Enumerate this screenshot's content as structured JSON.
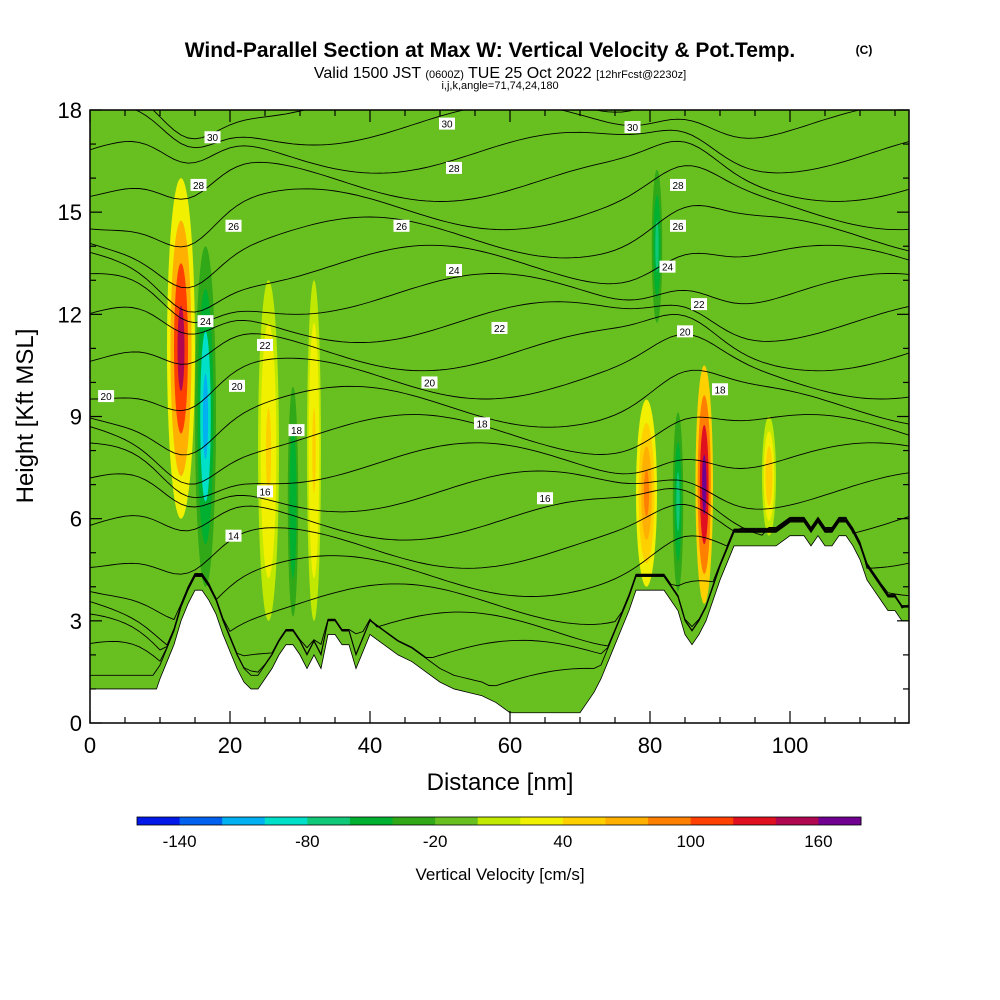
{
  "chart_data": {
    "type": "heatmap",
    "title": "Wind-Parallel Section at Max W: Vertical Velocity & Pot.Temp.",
    "title_mark": "(C)",
    "subtitle_parts": [
      "Valid 1500 JST ",
      "(0600Z)",
      " TUE 25 Oct 2022 ",
      "[12hrFcst@2230z]"
    ],
    "subtitle2": "i,j,k,angle=71,74,24,180",
    "xlabel": "Distance [nm]",
    "ylabel": "Height [Kft MSL]",
    "xlim": [
      0,
      117
    ],
    "ylim": [
      0,
      18
    ],
    "x_ticks": [
      0,
      20,
      40,
      60,
      80,
      100
    ],
    "y_ticks": [
      0,
      3,
      6,
      9,
      12,
      15,
      18
    ],
    "x_tick_labels": [
      "0",
      "20",
      "40",
      "60",
      "80",
      "100"
    ],
    "y_tick_labels": [
      "0",
      "3",
      "6",
      "9",
      "12",
      "15",
      "18"
    ],
    "colorbar": {
      "title": "Vertical Velocity [cm/s]",
      "levels": [
        -160,
        -140,
        -120,
        -100,
        -80,
        -60,
        -40,
        -20,
        0,
        20,
        40,
        60,
        80,
        100,
        120,
        140,
        160,
        180
      ],
      "colors": [
        "#0018e8",
        "#0060f0",
        "#00b0f0",
        "#00e0c8",
        "#10c878",
        "#00b030",
        "#30a818",
        "#68c020",
        "#c0e800",
        "#f0f000",
        "#ffd000",
        "#ffb000",
        "#ff8000",
        "#ff4000",
        "#e01020",
        "#b00850",
        "#700090"
      ],
      "tick_values": [
        -140,
        -80,
        -20,
        40,
        100,
        160
      ],
      "tick_labels": [
        "-140",
        "-80",
        "-20",
        "40",
        "100",
        "160"
      ]
    },
    "vertical_velocity_cells": [
      {
        "x": [
          11,
          15
        ],
        "y": [
          6,
          16
        ],
        "w": 140
      },
      {
        "x": [
          15,
          18
        ],
        "y": [
          4,
          14
        ],
        "w": -120
      },
      {
        "x": [
          24,
          27
        ],
        "y": [
          3,
          13
        ],
        "w": 50
      },
      {
        "x": [
          28,
          30
        ],
        "y": [
          2,
          11
        ],
        "w": -60
      },
      {
        "x": [
          31,
          33
        ],
        "y": [
          3,
          13
        ],
        "w": 45
      },
      {
        "x": [
          78,
          81
        ],
        "y": [
          4,
          9.5
        ],
        "w": 80
      },
      {
        "x": [
          83,
          85
        ],
        "y": [
          3,
          10
        ],
        "w": -80
      },
      {
        "x": [
          86.5,
          89
        ],
        "y": [
          3.5,
          10.5
        ],
        "w": 170
      },
      {
        "x": [
          80,
          82
        ],
        "y": [
          11,
          17
        ],
        "w": -70
      },
      {
        "x": [
          96,
          98
        ],
        "y": [
          5.5,
          9
        ],
        "w": 55
      }
    ],
    "terrain_height_profile": {
      "x": [
        0,
        9.5,
        10,
        11,
        12,
        13,
        14,
        15,
        16,
        17,
        18,
        19,
        20,
        21,
        22,
        23,
        24,
        25,
        26,
        27,
        28,
        29,
        30,
        31,
        32,
        33,
        34,
        35,
        36,
        37,
        38,
        40,
        42,
        44,
        46,
        48,
        50,
        52,
        54,
        56,
        58,
        60,
        62,
        64,
        66,
        68,
        70,
        71,
        72,
        73,
        74,
        75,
        76,
        77,
        78,
        80,
        82,
        83,
        84,
        85,
        86,
        87,
        88,
        89,
        90,
        92,
        94,
        96,
        98,
        100,
        102,
        103,
        104,
        105,
        106,
        107,
        108,
        109,
        110,
        111,
        112,
        113,
        114,
        115,
        116,
        117
      ],
      "y": [
        1,
        1,
        1.3,
        1.8,
        2.3,
        3,
        3.5,
        3.9,
        3.9,
        3.6,
        3.2,
        2.6,
        2.1,
        1.6,
        1.2,
        1,
        1,
        1.3,
        1.6,
        2,
        2.3,
        2.3,
        2,
        1.6,
        2,
        1.6,
        2.6,
        2.6,
        2.3,
        2.3,
        1.6,
        2.6,
        2.3,
        2,
        1.8,
        1.5,
        1.2,
        1,
        0.9,
        0.8,
        0.6,
        0.3,
        0.3,
        0.3,
        0.3,
        0.3,
        0.3,
        0.6,
        0.9,
        1.3,
        1.8,
        2.3,
        2.8,
        3.3,
        3.9,
        3.9,
        3.9,
        3.6,
        3.3,
        2.6,
        2.3,
        2.6,
        3,
        3.6,
        4.2,
        5.2,
        5.2,
        5.2,
        5.2,
        5.5,
        5.5,
        5.2,
        5.5,
        5.2,
        5.2,
        5.5,
        5.5,
        5.2,
        4.8,
        4.2,
        3.9,
        3.6,
        3.3,
        3.3,
        3,
        3
      ]
    },
    "theta_contour_levels": [
      10,
      11,
      12,
      13,
      14,
      15,
      16,
      17,
      18,
      19,
      20,
      21,
      22,
      23,
      24,
      25,
      26,
      27,
      28,
      29,
      30,
      31
    ],
    "theta_contour_labels": [
      {
        "text": "30",
        "x": 17.5,
        "y": 17.2
      },
      {
        "text": "28",
        "x": 15.5,
        "y": 15.8
      },
      {
        "text": "26",
        "x": 20.5,
        "y": 14.6
      },
      {
        "text": "24",
        "x": 16.5,
        "y": 11.8
      },
      {
        "text": "22",
        "x": 25,
        "y": 11.1
      },
      {
        "text": "20",
        "x": 21,
        "y": 9.9
      },
      {
        "text": "20",
        "x": 2.3,
        "y": 9.6
      },
      {
        "text": "18",
        "x": 29.5,
        "y": 8.6
      },
      {
        "text": "16",
        "x": 25,
        "y": 6.8
      },
      {
        "text": "14",
        "x": 20.5,
        "y": 5.5
      },
      {
        "text": "30",
        "x": 51,
        "y": 17.6
      },
      {
        "text": "28",
        "x": 52,
        "y": 16.3
      },
      {
        "text": "26",
        "x": 44.5,
        "y": 14.6
      },
      {
        "text": "24",
        "x": 52,
        "y": 13.3
      },
      {
        "text": "22",
        "x": 58.5,
        "y": 11.6
      },
      {
        "text": "20",
        "x": 48.5,
        "y": 10
      },
      {
        "text": "18",
        "x": 56,
        "y": 8.8
      },
      {
        "text": "16",
        "x": 65,
        "y": 6.6
      },
      {
        "text": "30",
        "x": 77.5,
        "y": 17.5
      },
      {
        "text": "28",
        "x": 84,
        "y": 15.8
      },
      {
        "text": "26",
        "x": 84,
        "y": 14.6
      },
      {
        "text": "24",
        "x": 82.5,
        "y": 13.4
      },
      {
        "text": "22",
        "x": 87,
        "y": 12.3
      },
      {
        "text": "20",
        "x": 85,
        "y": 11.5
      },
      {
        "text": "18",
        "x": 90,
        "y": 9.8
      }
    ]
  }
}
